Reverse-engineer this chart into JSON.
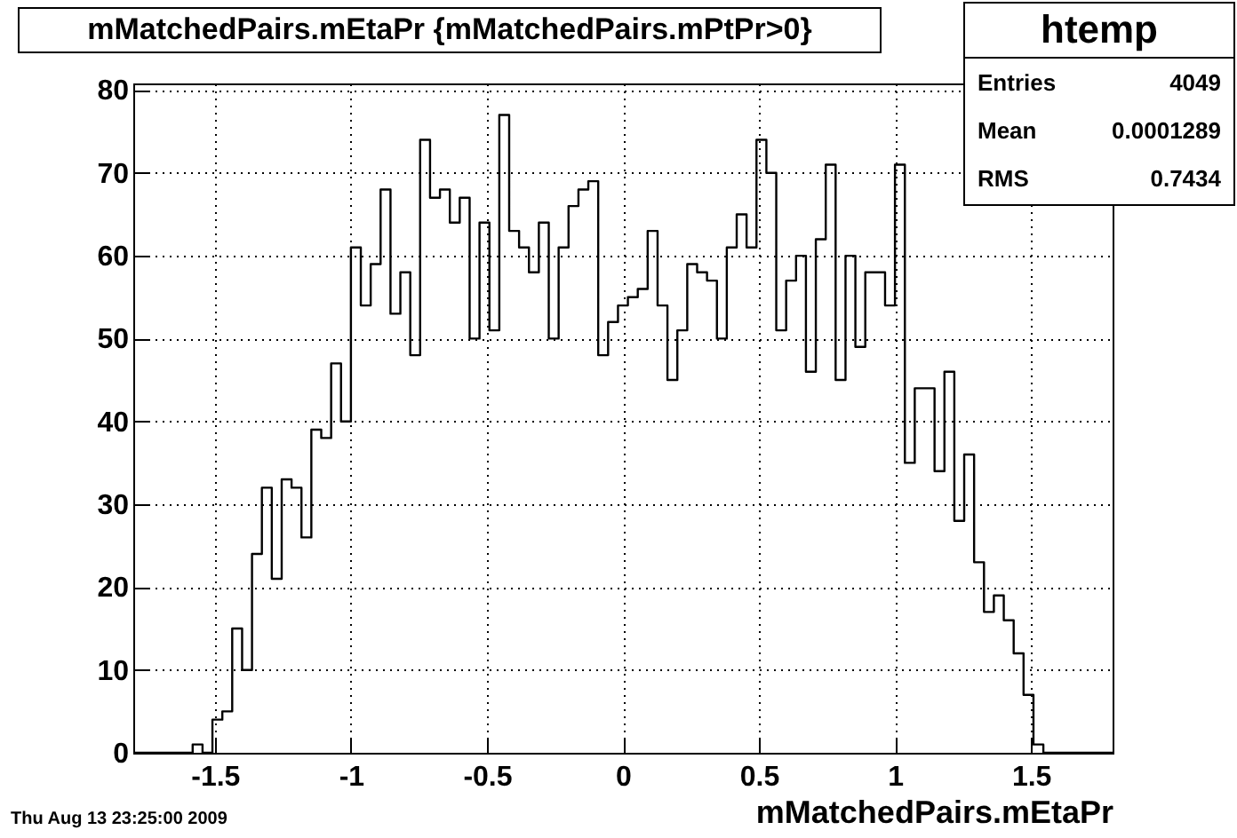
{
  "chart_data": {
    "type": "histogram",
    "title": "mMatchedPairs.mEtaPr {mMatchedPairs.mPtPr>0}",
    "xlabel": "mMatchedPairs.mEtaPr",
    "annotations": [
      "htemp",
      "Entries",
      "4049",
      "Mean",
      "0.0001289",
      "RMS",
      "0.7434",
      "Thu Aug 13 23:25:00 2009"
    ],
    "color": "#000000",
    "bins": [
      -1.8,
      -1.7636,
      -1.7273,
      -1.6909,
      -1.6545,
      -1.6182,
      -1.5818,
      -1.5455,
      -1.5091,
      -1.4727,
      -1.4364,
      -1.4,
      -1.3636,
      -1.3273,
      -1.2909,
      -1.2545,
      -1.2182,
      -1.1818,
      -1.1455,
      -1.1091,
      -1.0727,
      -1.0364,
      -1,
      -0.9636,
      -0.9273,
      -0.8909,
      -0.8545,
      -0.8182,
      -0.7818,
      -0.7455,
      -0.7091,
      -0.6727,
      -0.6364,
      -0.6,
      -0.5636,
      -0.5273,
      -0.4909,
      -0.4545,
      -0.4182,
      -0.3818,
      -0.3455,
      -0.3091,
      -0.2727,
      -0.2364,
      -0.2,
      -0.1636,
      -0.1273,
      -0.0909,
      -0.0545,
      -0.0182,
      0.0182,
      0.0545,
      0.0909,
      0.1273,
      0.1636,
      0.2,
      0.2364,
      0.2727,
      0.3091,
      0.3455,
      0.3818,
      0.4182,
      0.4545,
      0.4909,
      0.5273,
      0.5636,
      0.6,
      0.6364,
      0.6727,
      0.7091,
      0.7455,
      0.7818,
      0.8182,
      0.8545,
      0.8909,
      0.9273,
      0.9636,
      1,
      1.0364,
      1.0727,
      1.1091,
      1.1455,
      1.1818,
      1.2182,
      1.2545,
      1.2909,
      1.3273,
      1.3636,
      1.4,
      1.4364,
      1.4727,
      1.5091,
      1.5455,
      1.5818,
      1.6182,
      1.6545,
      1.6909,
      1.7273,
      1.7636,
      1.8
    ],
    "values": [
      0,
      0,
      0,
      0,
      0,
      0,
      1,
      0,
      4,
      5,
      15,
      10,
      24,
      32,
      21,
      33,
      32,
      26,
      39,
      38,
      47,
      40,
      61,
      54,
      59,
      68,
      53,
      58,
      48,
      74,
      67,
      68,
      64,
      67,
      50,
      64,
      51,
      77,
      63,
      61,
      58,
      64,
      50,
      61,
      66,
      68,
      69,
      48,
      52,
      54,
      55,
      56,
      63,
      54,
      45,
      51,
      59,
      58,
      57,
      50,
      61,
      65,
      61,
      74,
      70,
      51,
      57,
      60,
      46,
      62,
      71,
      45,
      60,
      49,
      58,
      58,
      54,
      71,
      35,
      44,
      44,
      34,
      46,
      28,
      36,
      23,
      17,
      19,
      16,
      12,
      7,
      1,
      0,
      0,
      0,
      0,
      0,
      0,
      0
    ],
    "xlim": [
      -1.8,
      1.8
    ],
    "xticks": [
      -1.5,
      -1,
      -0.5,
      0,
      0.5,
      1,
      1.5
    ],
    "ylim": [
      0,
      80.8
    ],
    "yticks": [
      0,
      10,
      20,
      30,
      40,
      50,
      60,
      70,
      80
    ],
    "grid": true
  }
}
